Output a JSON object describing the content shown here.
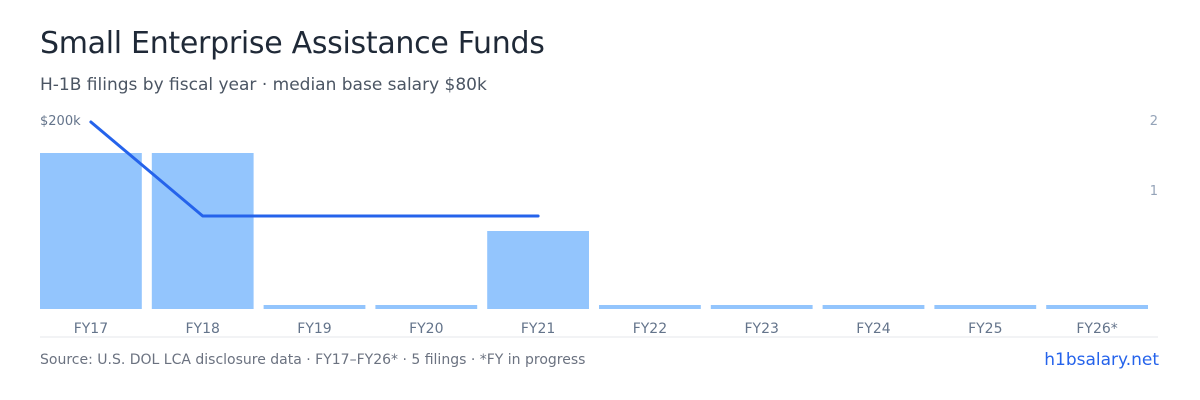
{
  "header": {
    "title": "Small Enterprise Assistance Funds",
    "subtitle": "H-1B filings by fiscal year · median base salary $80k"
  },
  "footer": {
    "source": "Source: U.S. DOL LCA disclosure data · FY17–FY26* · 5 filings · *FY in progress",
    "site": "h1bsalary.net"
  },
  "colors": {
    "bar": "#93c5fd",
    "line": "#2563eb",
    "axis_text": "#94a3b8",
    "tick_text": "#64748b",
    "baseline": "#e5e7eb"
  },
  "chart_data": {
    "type": "bar",
    "categories": [
      "FY17",
      "FY18",
      "FY19",
      "FY20",
      "FY21",
      "FY22",
      "FY23",
      "FY24",
      "FY25",
      "FY26*"
    ],
    "series": [
      {
        "type": "bar",
        "axis": "right",
        "values": [
          2,
          2,
          0,
          0,
          1,
          0,
          0,
          0,
          0,
          0
        ]
      },
      {
        "type": "line",
        "axis": "left",
        "values": [
          200000,
          80000,
          null,
          null,
          80000,
          null,
          null,
          null,
          null,
          null
        ]
      }
    ],
    "y_left": {
      "ticks": [
        {
          "value": 200000,
          "label": "$200k"
        }
      ],
      "range": [
        0,
        200000
      ]
    },
    "y_right": {
      "ticks": [
        {
          "value": 2,
          "label": "2"
        },
        {
          "value": 1,
          "label": "1"
        }
      ],
      "range": [
        0,
        2.2
      ]
    },
    "grid": false
  }
}
